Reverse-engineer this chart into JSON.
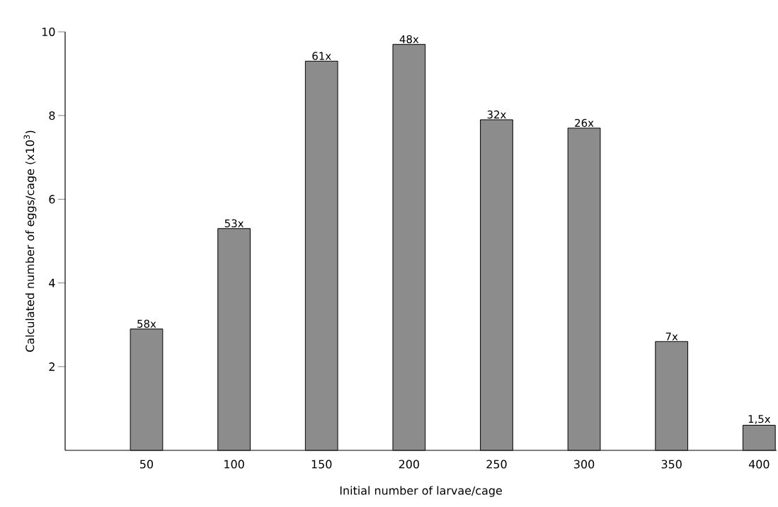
{
  "chart_data": {
    "type": "bar",
    "xlabel": "Initial number of larvae/cage",
    "ylabel": "Calculated number of eggs/cage (x10$^{3}$)",
    "categories": [
      "50",
      "100",
      "150",
      "200",
      "250",
      "300",
      "350",
      "400"
    ],
    "values": [
      2.9,
      5.3,
      9.3,
      9.7,
      7.9,
      7.7,
      2.6,
      0.6
    ],
    "annotations": [
      {
        "text": "58x",
        "x": "50",
        "y": 2.9
      },
      {
        "text": "53x",
        "x": "100",
        "y": 5.3
      },
      {
        "text": "61x",
        "x": "150",
        "y": 9.3
      },
      {
        "text": "48x",
        "x": "200",
        "y": 9.7
      },
      {
        "text": "32x",
        "x": "250",
        "y": 7.9
      },
      {
        "text": "26x",
        "x": "300",
        "y": 7.7
      },
      {
        "text": "7x",
        "x": "350",
        "y": 2.6
      },
      {
        "text": "1,5x",
        "x": "400",
        "y": 0.6
      }
    ],
    "color": "#8c8c8c",
    "ylim": [
      0,
      10
    ],
    "yticks": [
      2,
      4,
      6,
      8,
      10
    ]
  }
}
